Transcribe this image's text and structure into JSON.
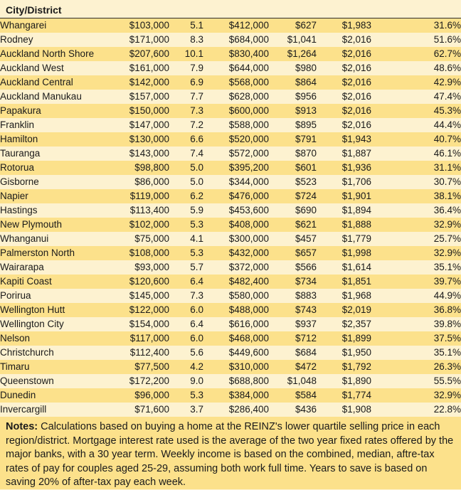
{
  "chart_data": {
    "type": "table",
    "header": "City/District",
    "rows": [
      [
        "Whangarei",
        "$103,000",
        "5.1",
        "$412,000",
        "$627",
        "$1,983",
        "31.6%"
      ],
      [
        "Rodney",
        "$171,000",
        "8.3",
        "$684,000",
        "$1,041",
        "$2,016",
        "51.6%"
      ],
      [
        "Auckland North Shore",
        "$207,600",
        "10.1",
        "$830,400",
        "$1,264",
        "$2,016",
        "62.7%"
      ],
      [
        "Auckland West",
        "$161,000",
        "7.9",
        "$644,000",
        "$980",
        "$2,016",
        "48.6%"
      ],
      [
        "Auckland Central",
        "$142,000",
        "6.9",
        "$568,000",
        "$864",
        "$2,016",
        "42.9%"
      ],
      [
        "Auckland Manukau",
        "$157,000",
        "7.7",
        "$628,000",
        "$956",
        "$2,016",
        "47.4%"
      ],
      [
        "Papakura",
        "$150,000",
        "7.3",
        "$600,000",
        "$913",
        "$2,016",
        "45.3%"
      ],
      [
        "Franklin",
        "$147,000",
        "7.2",
        "$588,000",
        "$895",
        "$2,016",
        "44.4%"
      ],
      [
        "Hamilton",
        "$130,000",
        "6.6",
        "$520,000",
        "$791",
        "$1,943",
        "40.7%"
      ],
      [
        "Tauranga",
        "$143,000",
        "7.4",
        "$572,000",
        "$870",
        "$1,887",
        "46.1%"
      ],
      [
        "Rotorua",
        "$98,800",
        "5.0",
        "$395,200",
        "$601",
        "$1,936",
        "31.1%"
      ],
      [
        "Gisborne",
        "$86,000",
        "5.0",
        "$344,000",
        "$523",
        "$1,706",
        "30.7%"
      ],
      [
        "Napier",
        "$119,000",
        "6.2",
        "$476,000",
        "$724",
        "$1,901",
        "38.1%"
      ],
      [
        "Hastings",
        "$113,400",
        "5.9",
        "$453,600",
        "$690",
        "$1,894",
        "36.4%"
      ],
      [
        "New Plymouth",
        "$102,000",
        "5.3",
        "$408,000",
        "$621",
        "$1,888",
        "32.9%"
      ],
      [
        "Whanganui",
        "$75,000",
        "4.1",
        "$300,000",
        "$457",
        "$1,779",
        "25.7%"
      ],
      [
        "Palmerston North",
        "$108,000",
        "5.3",
        "$432,000",
        "$657",
        "$1,998",
        "32.9%"
      ],
      [
        "Wairarapa",
        "$93,000",
        "5.7",
        "$372,000",
        "$566",
        "$1,614",
        "35.1%"
      ],
      [
        "Kapiti Coast",
        "$120,600",
        "6.4",
        "$482,400",
        "$734",
        "$1,851",
        "39.7%"
      ],
      [
        "Porirua",
        "$145,000",
        "7.3",
        "$580,000",
        "$883",
        "$1,968",
        "44.9%"
      ],
      [
        "Wellington Hutt",
        "$122,000",
        "6.0",
        "$488,000",
        "$743",
        "$2,019",
        "36.8%"
      ],
      [
        "Wellington City",
        "$154,000",
        "6.4",
        "$616,000",
        "$937",
        "$2,357",
        "39.8%"
      ],
      [
        "Nelson",
        "$117,000",
        "6.0",
        "$468,000",
        "$712",
        "$1,899",
        "37.5%"
      ],
      [
        "Christchurch",
        "$112,400",
        "5.6",
        "$449,600",
        "$684",
        "$1,950",
        "35.1%"
      ],
      [
        "Timaru",
        "$77,500",
        "4.2",
        "$310,000",
        "$472",
        "$1,792",
        "26.3%"
      ],
      [
        "Queenstown",
        "$172,200",
        "9.0",
        "$688,800",
        "$1,048",
        "$1,890",
        "55.5%"
      ],
      [
        "Dunedin",
        "$96,000",
        "5.3",
        "$384,000",
        "$584",
        "$1,774",
        "32.9%"
      ],
      [
        "Invercargill",
        "$71,600",
        "3.7",
        "$286,400",
        "$436",
        "$1,908",
        "22.8%"
      ]
    ]
  },
  "notes": {
    "label": "Notes:",
    "text": "Calculations based on buying a home at the REINZ's lower quartile selling price in each region/district. Mortgage interest rate used is the average of the two year fixed rates offered by the major banks, with a 30 year term. Weekly income is based on the combined, median, aftre-tax rates of pay for couples aged 25-29, assuming both work full time. Years to save is based on saving 20% of after-tax pay each week."
  },
  "colors": {
    "row_gold": "#FCE18B",
    "row_cream": "#FDF2D0",
    "header_underline": "#2e2e2e",
    "text": "#1a1a1a"
  }
}
